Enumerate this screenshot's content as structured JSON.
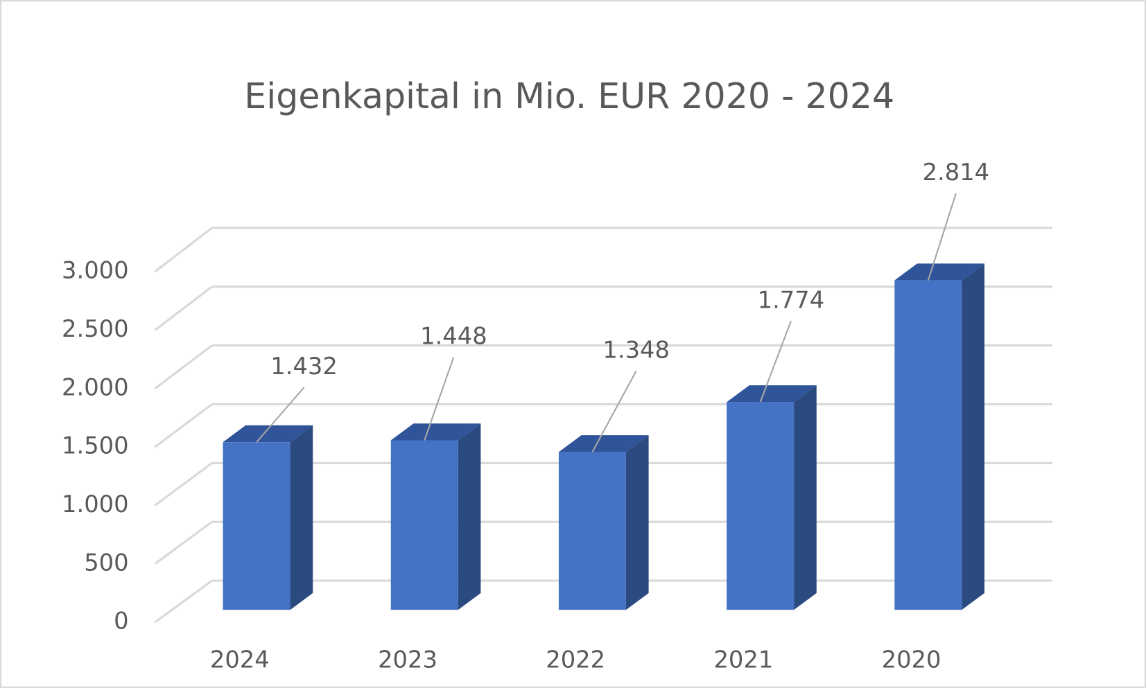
{
  "chart_data": {
    "type": "bar3d",
    "title": "Eigenkapital in Mio. EUR 2020 - 2024",
    "categories": [
      "2024",
      "2023",
      "2022",
      "2021",
      "2020"
    ],
    "values": [
      1432,
      1448,
      1348,
      1774,
      2814
    ],
    "value_labels": [
      "1.432",
      "1.448",
      "1.348",
      "1.774",
      "2.814"
    ],
    "color": "#4472c4",
    "ylim": [
      0,
      3000
    ],
    "yticks": [
      0,
      500,
      {
        "value": 1000,
        "label": "1.000"
      },
      {
        "value": 1500,
        "label": "1.500"
      },
      {
        "value": 2000,
        "label": "2.000"
      },
      {
        "value": 2500,
        "label": "2.500"
      },
      {
        "value": 3000,
        "label": "3.000"
      }
    ],
    "grid": true
  }
}
